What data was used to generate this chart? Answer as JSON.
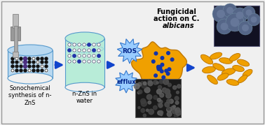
{
  "bg_color": "#f0f0f0",
  "border_color": "#999999",
  "arrow_color": "#1144cc",
  "beaker1_color": "#b8d8f0",
  "beaker2_color": "#b8ecd8",
  "particle_dark": "#111111",
  "particle_blue": "#2233aa",
  "particle_purple": "#442277",
  "fungus_color": "#f0a000",
  "fungus_outline": "#c07800",
  "nano_on_fungus": "#1133aa",
  "burst_color": "#99ccff",
  "burst_outline": "#3377cc",
  "label1": "Sonochemical\nsynthesis of n-\nZnS",
  "label2": "n-ZnS in\nwater",
  "label_ros": "ROS",
  "label_efflux": "efflux",
  "spore_color": "#f0a000",
  "spore_outline": "#c07800",
  "label_fungicidal": "Fungicidal",
  "label_action": "action on C.",
  "label_albicans": "albicans",
  "label_fontsize": 6.0,
  "burst_fontsize": 6.5,
  "title_fontsize": 7.0
}
